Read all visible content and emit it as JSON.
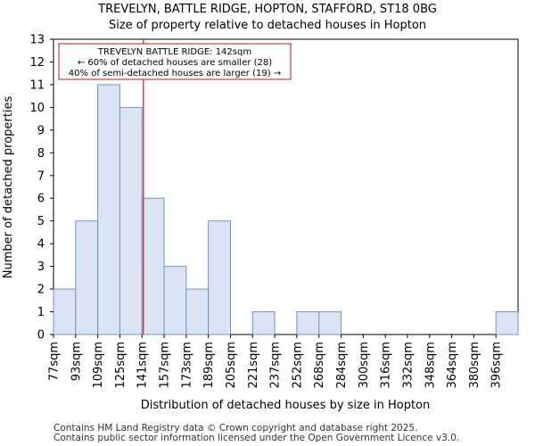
{
  "chart_data": {
    "type": "bar",
    "title": "TREVELYN, BATTLE RIDGE, HOPTON, STAFFORD, ST18 0BG",
    "subtitle": "Size of property relative to detached houses in Hopton",
    "xlabel": "Distribution of detached houses by size in Hopton",
    "ylabel": "Number of detached properties",
    "categories": [
      "77sqm",
      "93sqm",
      "109sqm",
      "125sqm",
      "141sqm",
      "157sqm",
      "173sqm",
      "189sqm",
      "205sqm",
      "221sqm",
      "237sqm",
      "252sqm",
      "268sqm",
      "284sqm",
      "300sqm",
      "316sqm",
      "332sqm",
      "348sqm",
      "364sqm",
      "380sqm",
      "396sqm"
    ],
    "values": [
      2,
      5,
      11,
      10,
      6,
      3,
      2,
      5,
      0,
      1,
      0,
      1,
      1,
      0,
      0,
      0,
      0,
      0,
      0,
      0,
      1
    ],
    "ylim": [
      0,
      13
    ],
    "yticks": [
      0,
      1,
      2,
      3,
      4,
      5,
      6,
      7,
      8,
      9,
      10,
      11,
      12,
      13
    ],
    "marker_value_sqm": 142,
    "bar_fill": "#dae4f4",
    "bar_edge": "#6f96c9",
    "marker_color": "#b22222",
    "annotation": {
      "line1": "TREVELYN BATTLE RIDGE: 142sqm",
      "line2": "← 60% of detached houses are smaller (28)",
      "line3": "40% of semi-detached houses are larger (19) →"
    }
  },
  "footer": {
    "line1": "Contains HM Land Registry data © Crown copyright and database right 2025.",
    "line2": "Contains public sector information licensed under the Open Government Licence v3.0."
  }
}
